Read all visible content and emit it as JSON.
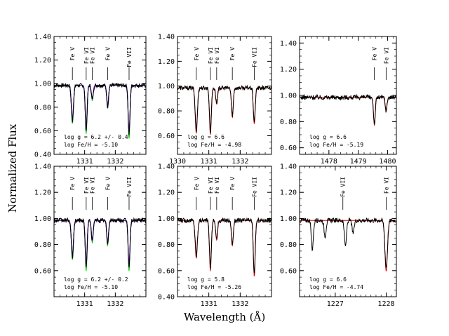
{
  "figure": {
    "ylabel": "Normalized Flux",
    "xlabel": "Wavelength (Å)"
  },
  "chart_data": [
    {
      "type": "line",
      "id": "p11",
      "xlim": [
        1330.0,
        1333.0
      ],
      "ylim": [
        0.4,
        1.4
      ],
      "yticks": [
        "0.40",
        "0.60",
        "0.80",
        "1.00",
        "1.20",
        "1.40"
      ],
      "xticks": [
        "1331",
        "1332"
      ],
      "show_yticklabels": true,
      "show_xticklabels": true,
      "annotations": [
        "log g = 6.2 +/- 0.4",
        "log Fe/H = -5.10"
      ],
      "lines": [
        {
          "label": "Fe V",
          "x": 1330.6
        },
        {
          "label": "Fe VI",
          "x": 1331.05
        },
        {
          "label": "Fe VI",
          "x": 1331.25
        },
        {
          "label": "Fe V",
          "x": 1331.75
        },
        {
          "label": "Fe VII",
          "x": 1332.45
        }
      ],
      "series": [
        {
          "color": "#000000",
          "type": "observed"
        },
        {
          "color": "#00cc00",
          "type": "model"
        },
        {
          "color": "#0000ff",
          "type": "model"
        },
        {
          "color": "#8800cc",
          "type": "model"
        }
      ],
      "absorption": [
        [
          1330.6,
          0.3,
          0.035
        ],
        [
          1331.05,
          0.38,
          0.03
        ],
        [
          1331.25,
          0.12,
          0.03
        ],
        [
          1331.75,
          0.18,
          0.03
        ],
        [
          1332.45,
          0.42,
          0.03
        ]
      ]
    },
    {
      "type": "line",
      "id": "p12",
      "xlim": [
        1330.0,
        1333.0
      ],
      "ylim": [
        0.45,
        1.4
      ],
      "yticks": [
        "0.60",
        "0.80",
        "1.00",
        "1.20",
        "1.40"
      ],
      "xticks": [
        "1330",
        "1331",
        "1332"
      ],
      "show_yticklabels": true,
      "show_xticklabels": true,
      "annotations": [
        "log g = 6.6",
        "log Fe/H = -4.98"
      ],
      "lines": [
        {
          "label": "Fe V",
          "x": 1330.6
        },
        {
          "label": "Fe VI",
          "x": 1331.05
        },
        {
          "label": "Fe VI",
          "x": 1331.25
        },
        {
          "label": "Fe V",
          "x": 1331.75
        },
        {
          "label": "Fe VII",
          "x": 1332.45
        }
      ],
      "series": [
        {
          "color": "#000000",
          "type": "observed"
        },
        {
          "color": "#dd0000",
          "type": "model"
        }
      ],
      "absorption": [
        [
          1330.6,
          0.34,
          0.035
        ],
        [
          1331.05,
          0.35,
          0.03
        ],
        [
          1331.25,
          0.12,
          0.03
        ],
        [
          1331.75,
          0.22,
          0.03
        ],
        [
          1332.45,
          0.27,
          0.03
        ]
      ]
    },
    {
      "type": "line",
      "id": "p13",
      "xlim": [
        1477.0,
        1480.3
      ],
      "ylim": [
        0.55,
        1.45
      ],
      "yticks": [
        "0.60",
        "0.80",
        "1.00",
        "1.20",
        "1.40"
      ],
      "xticks": [
        "1478",
        "1479",
        "1480"
      ],
      "show_yticklabels": true,
      "show_xticklabels": true,
      "annotations": [
        "log g = 6.6",
        "log Fe/H = -5.19"
      ],
      "lines": [
        {
          "label": "Fe V",
          "x": 1479.55
        },
        {
          "label": "Fe VI",
          "x": 1479.95
        }
      ],
      "series": [
        {
          "color": "#000000",
          "type": "observed"
        },
        {
          "color": "#dd0000",
          "type": "model"
        }
      ],
      "absorption": [
        [
          1479.55,
          0.2,
          0.03
        ],
        [
          1479.95,
          0.1,
          0.03
        ]
      ]
    },
    {
      "type": "line",
      "id": "p21",
      "xlim": [
        1330.0,
        1333.0
      ],
      "ylim": [
        0.4,
        1.4
      ],
      "yticks": [
        "0.60",
        "0.80",
        "1.00",
        "1.20",
        "1.40"
      ],
      "xticks": [
        "1331",
        "1332"
      ],
      "show_yticklabels": true,
      "show_xticklabels": true,
      "annotations": [
        "log g = 6.2 +/- 0.2",
        "log Fe/H = -5.10"
      ],
      "lines": [
        {
          "label": "Fe V",
          "x": 1330.6
        },
        {
          "label": "Fe VI",
          "x": 1331.05
        },
        {
          "label": "Fe VI",
          "x": 1331.25
        },
        {
          "label": "Fe V",
          "x": 1331.75
        },
        {
          "label": "Fe VII",
          "x": 1332.45
        }
      ],
      "series": [
        {
          "color": "#000000",
          "type": "observed"
        },
        {
          "color": "#00cc00",
          "type": "model"
        },
        {
          "color": "#0000ff",
          "type": "model"
        },
        {
          "color": "#8800cc",
          "type": "model"
        }
      ],
      "absorption": [
        [
          1330.6,
          0.28,
          0.035
        ],
        [
          1331.05,
          0.36,
          0.03
        ],
        [
          1331.25,
          0.16,
          0.03
        ],
        [
          1331.75,
          0.18,
          0.03
        ],
        [
          1332.45,
          0.36,
          0.03
        ]
      ]
    },
    {
      "type": "line",
      "id": "p22",
      "xlim": [
        1330.0,
        1333.0
      ],
      "ylim": [
        0.4,
        1.4
      ],
      "yticks": [
        "0.40",
        "0.60",
        "0.80",
        "1.00",
        "1.20",
        "1.40"
      ],
      "xticks": [
        "1331",
        "1332"
      ],
      "show_yticklabels": true,
      "show_xticklabels": true,
      "annotations": [
        "log g = 5.8",
        "log Fe/H = -5.26"
      ],
      "lines": [
        {
          "label": "Fe V",
          "x": 1330.6
        },
        {
          "label": "Fe VI",
          "x": 1331.05
        },
        {
          "label": "Fe VI",
          "x": 1331.25
        },
        {
          "label": "Fe V",
          "x": 1331.75
        },
        {
          "label": "Fe VII",
          "x": 1332.45
        }
      ],
      "series": [
        {
          "color": "#000000",
          "type": "observed"
        },
        {
          "color": "#dd0000",
          "type": "model"
        }
      ],
      "absorption": [
        [
          1330.6,
          0.27,
          0.035
        ],
        [
          1331.05,
          0.36,
          0.03
        ],
        [
          1331.25,
          0.14,
          0.03
        ],
        [
          1331.75,
          0.18,
          0.03
        ],
        [
          1332.45,
          0.4,
          0.03
        ]
      ]
    },
    {
      "type": "line",
      "id": "p23",
      "xlim": [
        1226.3,
        1228.2
      ],
      "ylim": [
        0.4,
        1.4
      ],
      "yticks": [
        "0.60",
        "0.80",
        "1.00",
        "1.20",
        "1.40"
      ],
      "xticks": [
        "1227",
        "1228"
      ],
      "show_yticklabels": true,
      "show_xticklabels": true,
      "annotations": [
        "log g = 6.6",
        "log Fe/H = -4.74"
      ],
      "lines": [
        {
          "label": "Fe VII",
          "x": 1227.15
        },
        {
          "label": "Fe VI",
          "x": 1228.0
        }
      ],
      "series": [
        {
          "color": "#000000",
          "type": "observed"
        },
        {
          "color": "#dd0000",
          "type": "model"
        }
      ],
      "absorption": [
        [
          1228.0,
          0.36,
          0.025
        ]
      ],
      "extra_observed": [
        [
          1226.55,
          0.22,
          0.02
        ],
        [
          1226.8,
          0.12,
          0.02
        ],
        [
          1227.2,
          0.2,
          0.02
        ],
        [
          1227.35,
          0.1,
          0.02
        ]
      ]
    }
  ]
}
